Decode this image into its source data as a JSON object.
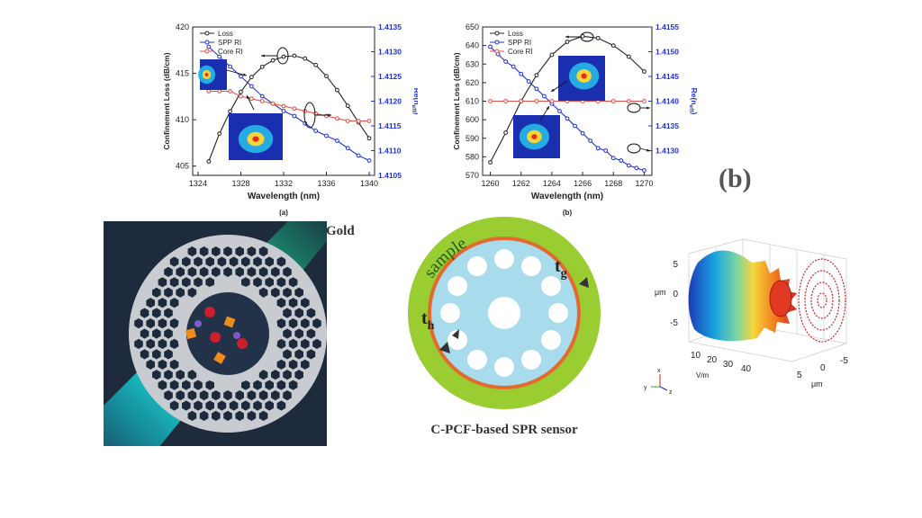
{
  "panel_b_label": "(b)",
  "chart_data": [
    {
      "type": "line",
      "caption": "(a)",
      "xlabel": "Wavelength (nm)",
      "ylabel_left": "Confinement Loss (dB/cm)",
      "ylabel_right": "Re(n",
      "ylabel_right_sub": "eff",
      "ylabel_right_close": ")",
      "xlim": [
        1323.5,
        1340.5
      ],
      "ylim_left": [
        404,
        420
      ],
      "ylim_right": [
        1.4105,
        1.4135
      ],
      "xticks": [
        1324,
        1328,
        1332,
        1336,
        1340
      ],
      "yticks_left": [
        405,
        410,
        415,
        420
      ],
      "yticks_right": [
        "1.4105",
        "1.4110",
        "1.4115",
        "1.4120",
        "1.4125",
        "1.4130",
        "1.4135"
      ],
      "legend_position": "top-left",
      "series": [
        {
          "name": "Loss",
          "axis": "left",
          "color": "#222222",
          "marker": "circle",
          "x": [
            1325,
            1326,
            1327,
            1328,
            1329,
            1330,
            1331,
            1332,
            1333,
            1334,
            1335,
            1336,
            1337,
            1338,
            1339,
            1340
          ],
          "y": [
            405.5,
            408.5,
            410.9,
            413.0,
            414.6,
            415.7,
            416.4,
            416.8,
            416.9,
            416.6,
            415.9,
            414.7,
            413.2,
            411.5,
            409.7,
            408.0
          ]
        },
        {
          "name": "SPP RI",
          "axis": "right",
          "color": "#2233cc",
          "marker": "circle",
          "x": [
            1325,
            1326,
            1327,
            1328,
            1329,
            1330,
            1331,
            1332,
            1333,
            1334,
            1335,
            1336,
            1337,
            1338,
            1339,
            1340
          ],
          "y": [
            1.4131,
            1.4129,
            1.4127,
            1.4125,
            1.4123,
            1.4121,
            1.41195,
            1.4118,
            1.4117,
            1.41155,
            1.4114,
            1.4113,
            1.4112,
            1.41105,
            1.4109,
            1.4108
          ]
        },
        {
          "name": "Core RI",
          "axis": "right",
          "color": "#e0504a",
          "marker": "circle",
          "x": [
            1325,
            1326,
            1327,
            1328,
            1329,
            1330,
            1331,
            1332,
            1333,
            1334,
            1335,
            1336,
            1337,
            1338,
            1339,
            1340
          ],
          "y": [
            1.4122,
            1.4122,
            1.4122,
            1.4121,
            1.41205,
            1.412,
            1.41195,
            1.4119,
            1.41185,
            1.4118,
            1.41175,
            1.4117,
            1.41165,
            1.4116,
            1.4116,
            1.4116
          ]
        }
      ]
    },
    {
      "type": "line",
      "caption": "(b)",
      "xlabel": "Wavelength (nm)",
      "ylabel_left": "Confinement Loss (dB/cm)",
      "ylabel_right": "Re(n",
      "ylabel_right_sub": "eff",
      "ylabel_right_close": ")",
      "xlim": [
        1259.5,
        1270.5
      ],
      "ylim_left": [
        570,
        650
      ],
      "ylim_right": [
        1.4125,
        1.4155
      ],
      "xticks": [
        1260,
        1262,
        1264,
        1266,
        1268,
        1270
      ],
      "yticks_left": [
        570,
        580,
        590,
        600,
        610,
        620,
        630,
        640,
        650
      ],
      "yticks_right": [
        "1.4130",
        "1.4135",
        "1.4140",
        "1.4145",
        "1.4150",
        "1.4155"
      ],
      "legend_position": "top-left",
      "series": [
        {
          "name": "Loss",
          "axis": "left",
          "color": "#222222",
          "marker": "circle",
          "x": [
            1260,
            1261,
            1262,
            1263,
            1264,
            1265,
            1266,
            1267,
            1268,
            1269,
            1270
          ],
          "y": [
            577,
            593,
            610,
            624,
            635,
            642,
            645,
            644,
            640,
            634,
            626
          ]
        },
        {
          "name": "SPP RI",
          "axis": "right",
          "color": "#2233cc",
          "marker": "circle",
          "x": [
            1260,
            1260.5,
            1261,
            1261.5,
            1262,
            1262.5,
            1263,
            1263.5,
            1264,
            1264.5,
            1265,
            1265.5,
            1266,
            1266.5,
            1267,
            1267.5,
            1268,
            1268.5,
            1269,
            1269.5,
            1270
          ],
          "y": [
            1.4151,
            1.41495,
            1.4148,
            1.4147,
            1.41455,
            1.4144,
            1.41425,
            1.4141,
            1.41395,
            1.4138,
            1.41365,
            1.4135,
            1.41335,
            1.4132,
            1.41305,
            1.413,
            1.41285,
            1.4128,
            1.4127,
            1.41265,
            1.4126
          ]
        },
        {
          "name": "Core RI",
          "axis": "right",
          "color": "#e0504a",
          "marker": "circle",
          "x": [
            1260,
            1261,
            1262,
            1263,
            1264,
            1265,
            1266,
            1267,
            1268,
            1269,
            1270
          ],
          "y": [
            1.414,
            1.414,
            1.414,
            1.414,
            1.414,
            1.414,
            1.414,
            1.414,
            1.414,
            1.414,
            1.414
          ]
        }
      ]
    },
    {
      "type": "other",
      "xlabel": "V/m",
      "ylabel": "μm",
      "zlabel": "μm",
      "y_ticks": [
        "5",
        "0",
        "-5"
      ],
      "x_ticks": [
        "10",
        "20",
        "30",
        "40"
      ],
      "z_ticks": [
        "5",
        "0",
        "-5"
      ],
      "axis_triad": {
        "x": "x",
        "y": "y",
        "z": "z"
      }
    }
  ],
  "figures": {
    "gold_label": "Gold",
    "sample_label": "sample",
    "tg_label": "t",
    "tg_sub": "g",
    "th_label": "t",
    "th_sub": "h",
    "sensor_caption": "C-PCF-based SPR sensor"
  },
  "colors": {
    "loss": "#222222",
    "spp": "#2233cc",
    "core": "#e0504a",
    "gold_ring": "#e36a2e",
    "sample_green": "#9acd32",
    "core_blue": "#a8dcec",
    "fiber_bg": "#1d2b3d"
  }
}
